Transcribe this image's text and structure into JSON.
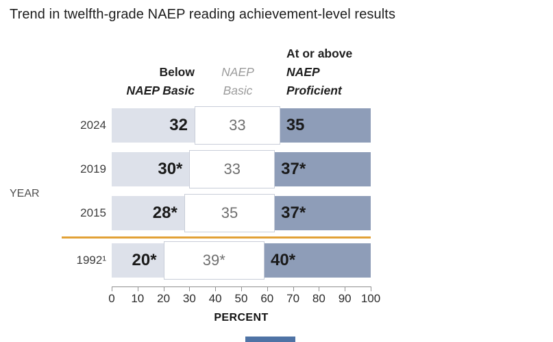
{
  "title": "Trend in twelfth-grade NAEP reading achievement-level results",
  "colors": {
    "below_basic": "#dde1ea",
    "basic_fill": "#ffffff",
    "basic_border": "#c8cdd8",
    "proficient": "#8e9db8",
    "divider_line": "#e2a136",
    "axis_line": "#8f8f8f",
    "bottom_strip": "#4f73a5"
  },
  "chart_data": {
    "type": "bar",
    "orientation": "horizontal",
    "stacked": true,
    "title": "Trend in twelfth-grade NAEP reading achievement-level results",
    "categories": [
      "2024",
      "2019",
      "2015",
      "1992"
    ],
    "categories_display": [
      "2024",
      "2019",
      "2015",
      "1992¹"
    ],
    "series": [
      {
        "name": "Below NAEP Basic",
        "values": [
          32,
          30,
          28,
          20
        ],
        "labels": [
          "32",
          "30*",
          "28*",
          "20*"
        ]
      },
      {
        "name": "NAEP Basic",
        "values": [
          33,
          33,
          35,
          39
        ],
        "labels": [
          "33",
          "33",
          "35",
          "39*"
        ]
      },
      {
        "name": "At or above NAEP Proficient",
        "values": [
          35,
          37,
          37,
          40
        ],
        "labels": [
          "35",
          "37*",
          "37*",
          "40*"
        ]
      }
    ],
    "column_headers": [
      {
        "line1": "Below",
        "line2": "NAEP Basic"
      },
      {
        "line1": "NAEP",
        "line2": "Basic"
      },
      {
        "line1": "At or above",
        "line2": "NAEP",
        "line3": "Proficient"
      }
    ],
    "xlabel": "PERCENT",
    "ylabel": "YEAR",
    "xlim": [
      0,
      100
    ],
    "xticks": [
      "0",
      "10",
      "20",
      "30",
      "40",
      "50",
      "60",
      "70",
      "80",
      "90",
      "100"
    ],
    "divider_after_category": "2015",
    "legend_position": "top-as-column-headers",
    "grid": false
  }
}
